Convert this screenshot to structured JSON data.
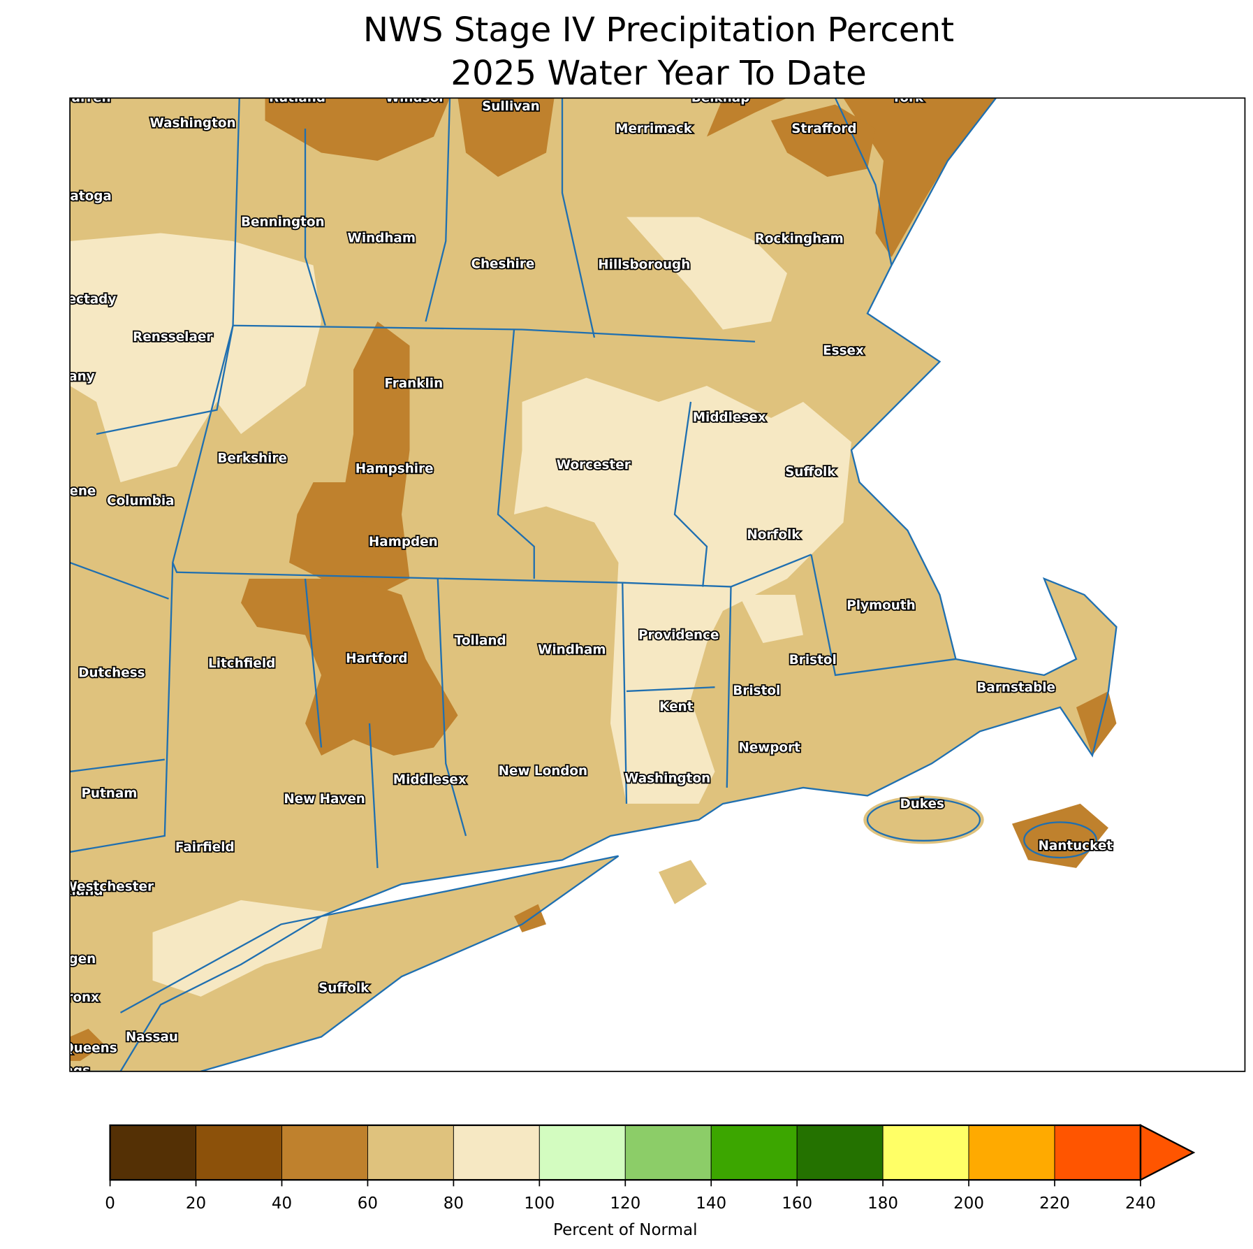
{
  "title": "NWS Stage IV Precipitation Percent",
  "subtitle": "2025 Water Year To Date",
  "counties": [
    "Warren",
    "Rutland",
    "Windsor",
    "Sullivan",
    "Belknap",
    "York",
    "Washington",
    "Merrimack",
    "Strafford",
    "Saratoga",
    "Bennington",
    "Windham",
    "Rockingham",
    "Cheshire",
    "Hillsborough",
    "Schenectady",
    "Rensselaer",
    "Essex",
    "Albany",
    "Franklin",
    "Middlesex",
    "Berkshire",
    "Worcester",
    "Hampshire",
    "Suffolk",
    "Greene",
    "Columbia",
    "Norfolk",
    "Hampden",
    "Plymouth",
    "Providence",
    "Tolland",
    "Windham",
    "Hartford",
    "Litchfield",
    "Bristol",
    "Dutchess",
    "Barnstable",
    "Bristol",
    "Kent",
    "Newport",
    "New London",
    "Washington",
    "Middlesex",
    "Putnam",
    "New Haven",
    "Dukes",
    "Fairfield",
    "Nantucket",
    "Rockland",
    "Westchester",
    "Suffolk",
    "Bergen",
    "Bronx",
    "Nassau",
    "Queens",
    "Kings"
  ],
  "colorbar": {
    "label": "Percent of Normal",
    "boundaries": [
      0,
      20,
      40,
      60,
      80,
      100,
      120,
      140,
      160,
      180,
      200,
      220,
      240
    ],
    "colors": [
      "#543005",
      "#8c510a",
      "#bf812d",
      "#dfc27d",
      "#f6e8c3",
      "#d3fcc0",
      "#8ccd68",
      "#3ca600",
      "#247200",
      "#ffff66",
      "#ffaa00",
      "#ff5500"
    ],
    "extend_color": "#ff5500"
  }
}
